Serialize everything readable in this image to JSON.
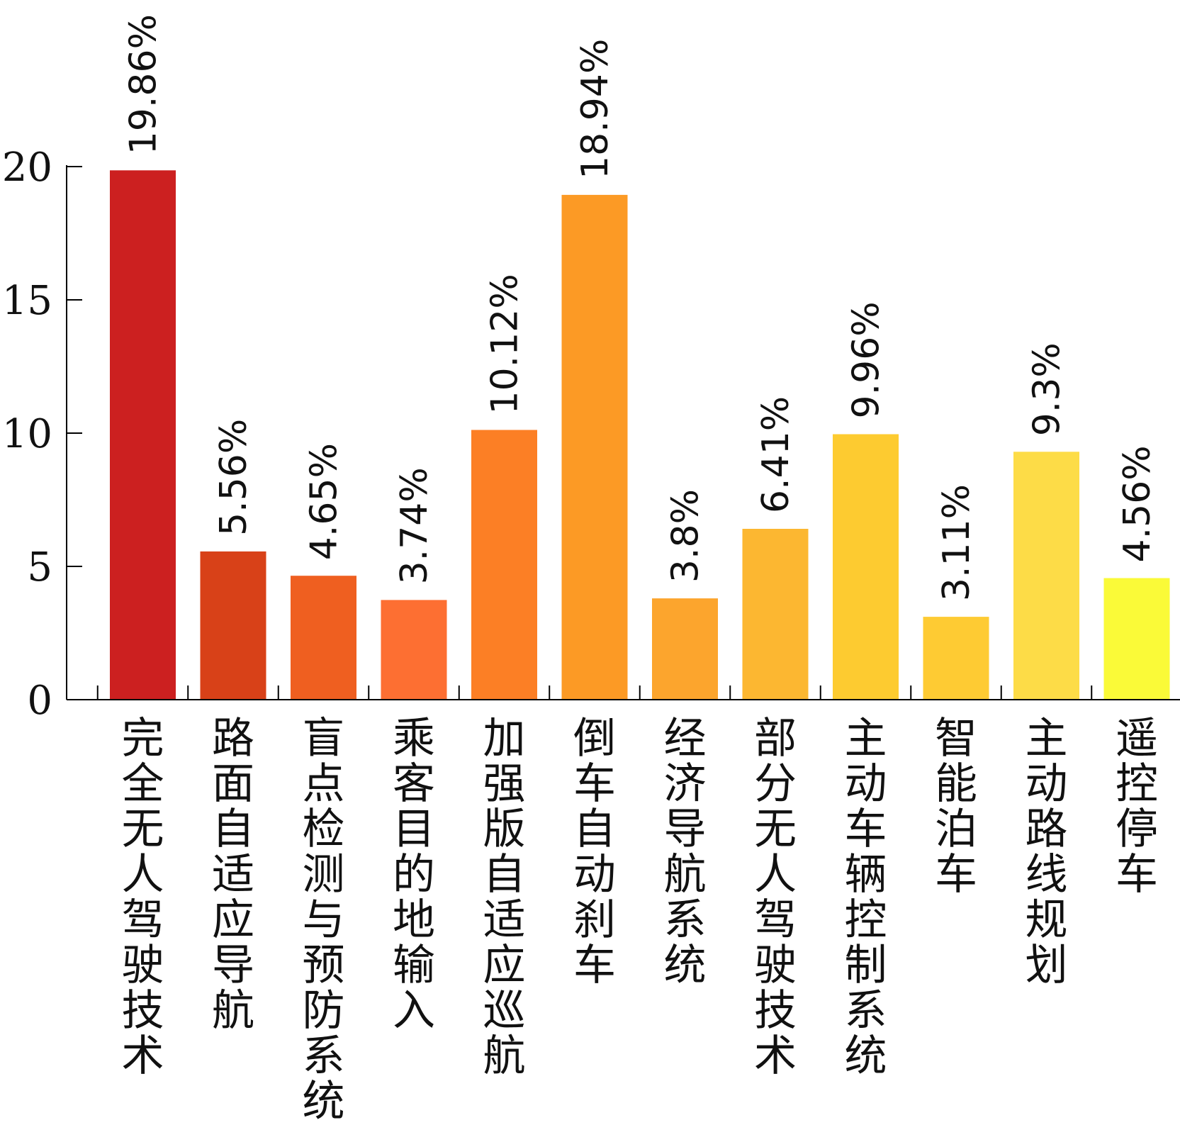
{
  "chart_data": {
    "type": "bar",
    "title": "",
    "xlabel": "",
    "ylabel": "",
    "ylim": [
      0,
      20
    ],
    "yticks": [
      0,
      5,
      10,
      15,
      20
    ],
    "grid": false,
    "legend": "none",
    "categories": [
      "完全无人驾驶技术",
      "路面自适应导航",
      "盲点检测与预防系统",
      "乘客目的地输入",
      "加强版自适应巡航",
      "倒车自动刹车",
      "经济导航系统",
      "部分无人驾驶技术",
      "主动车辆控制系统",
      "智能泊车",
      "主动路线规划",
      "遥控停车"
    ],
    "values": [
      19.86,
      5.56,
      4.65,
      3.74,
      10.12,
      18.94,
      3.8,
      6.41,
      9.96,
      3.11,
      9.3,
      4.56
    ],
    "labels": [
      "19.86%",
      "5.56%",
      "4.65%",
      "3.74%",
      "10.12%",
      "18.94%",
      "3.8%",
      "6.41%",
      "9.96%",
      "3.11%",
      "9.3%",
      "4.56%"
    ],
    "colors": [
      "#CC2020",
      "#D84118",
      "#EF5F20",
      "#FD6F32",
      "#FC7F25",
      "#FC9A25",
      "#FCA52D",
      "#FCB731",
      "#FDCB30",
      "#FECB33",
      "#FDDC47",
      "#FAFA38"
    ],
    "axis_color": "#000000"
  }
}
